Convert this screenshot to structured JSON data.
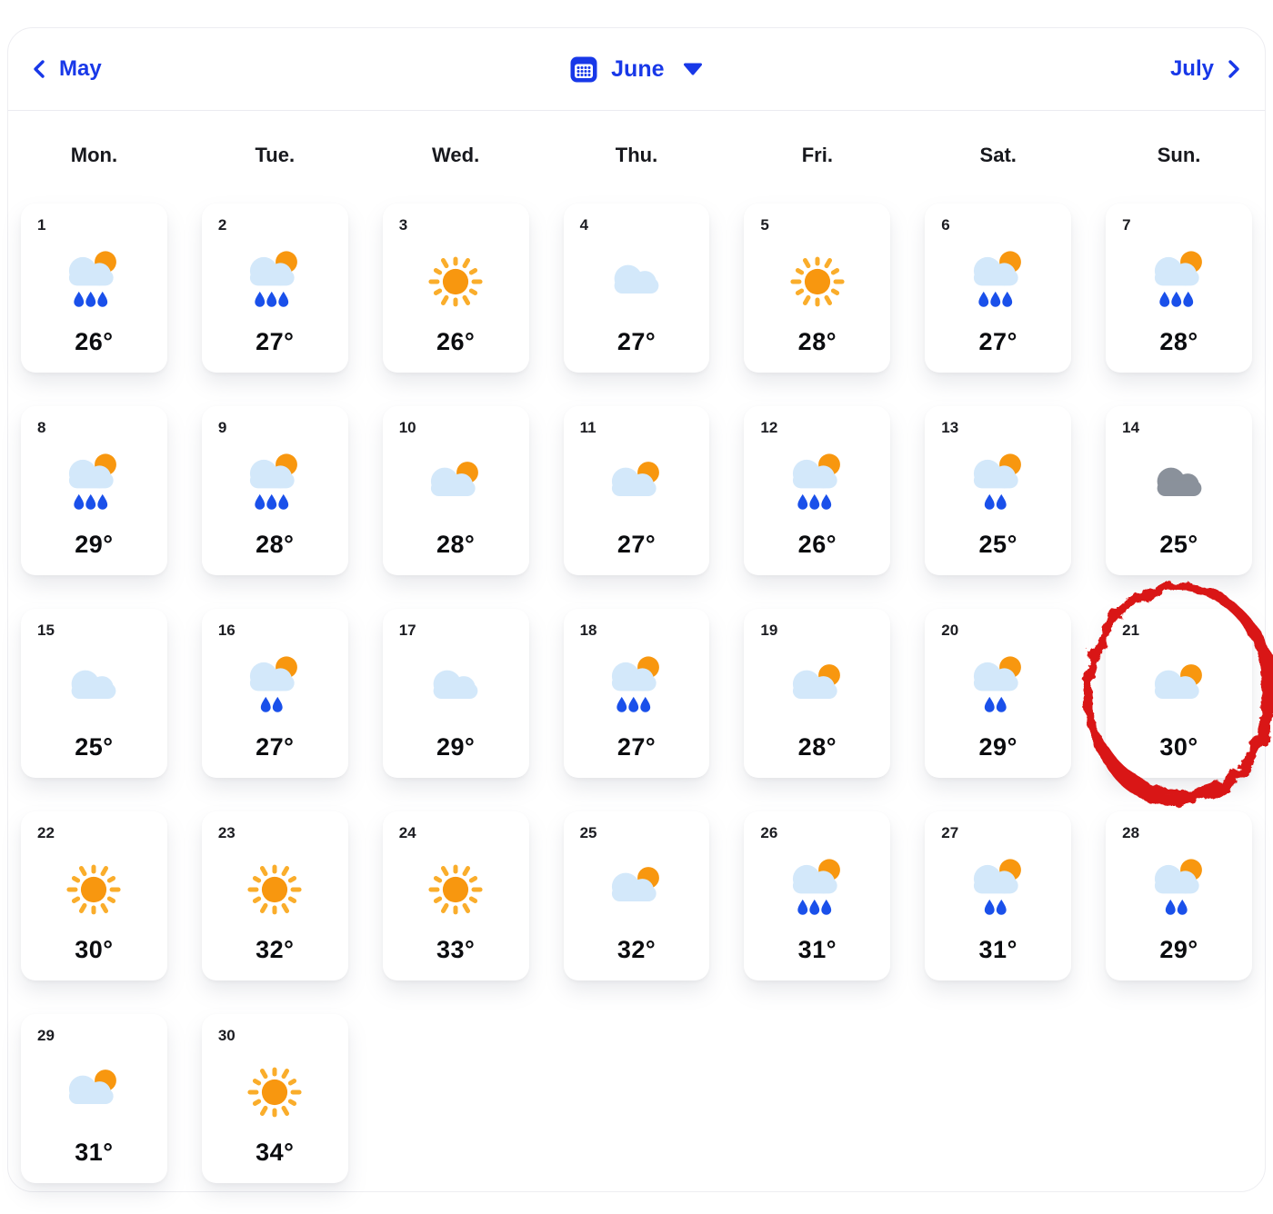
{
  "header": {
    "prev_label": "May",
    "month_label": "June",
    "next_label": "July"
  },
  "weekdays": [
    "Mon.",
    "Tue.",
    "Wed.",
    "Thu.",
    "Fri.",
    "Sat.",
    "Sun."
  ],
  "colors": {
    "accent_blue": "#1838E8",
    "sun_core": "#F8970F",
    "sun_rays": "#FAAD2B",
    "rain_blue": "#1A50EA",
    "cloud_light": "#D3E8FA",
    "cloud_gray": "#8A919B",
    "annotation_red": "#D91414"
  },
  "calendar": {
    "month": "June",
    "days": [
      {
        "day": "1",
        "icon": "cloud-sun-rain",
        "drops": 3,
        "temp": "26°"
      },
      {
        "day": "2",
        "icon": "cloud-sun-rain",
        "drops": 3,
        "temp": "27°"
      },
      {
        "day": "3",
        "icon": "sun",
        "drops": 0,
        "temp": "26°"
      },
      {
        "day": "4",
        "icon": "cloud",
        "drops": 0,
        "temp": "27°"
      },
      {
        "day": "5",
        "icon": "sun",
        "drops": 0,
        "temp": "28°"
      },
      {
        "day": "6",
        "icon": "cloud-sun-rain",
        "drops": 3,
        "temp": "27°"
      },
      {
        "day": "7",
        "icon": "cloud-sun-rain",
        "drops": 3,
        "temp": "28°"
      },
      {
        "day": "8",
        "icon": "cloud-sun-rain",
        "drops": 3,
        "temp": "29°"
      },
      {
        "day": "9",
        "icon": "cloud-sun-rain",
        "drops": 3,
        "temp": "28°"
      },
      {
        "day": "10",
        "icon": "cloud-sun",
        "drops": 0,
        "temp": "28°"
      },
      {
        "day": "11",
        "icon": "cloud-sun",
        "drops": 0,
        "temp": "27°"
      },
      {
        "day": "12",
        "icon": "cloud-sun-rain",
        "drops": 3,
        "temp": "26°"
      },
      {
        "day": "13",
        "icon": "cloud-sun-rain",
        "drops": 2,
        "temp": "25°"
      },
      {
        "day": "14",
        "icon": "cloud-dark",
        "drops": 0,
        "temp": "25°"
      },
      {
        "day": "15",
        "icon": "cloud",
        "drops": 0,
        "temp": "25°"
      },
      {
        "day": "16",
        "icon": "cloud-sun-rain",
        "drops": 2,
        "temp": "27°"
      },
      {
        "day": "17",
        "icon": "cloud",
        "drops": 0,
        "temp": "29°"
      },
      {
        "day": "18",
        "icon": "cloud-sun-rain",
        "drops": 3,
        "temp": "27°"
      },
      {
        "day": "19",
        "icon": "cloud-sun",
        "drops": 0,
        "temp": "28°"
      },
      {
        "day": "20",
        "icon": "cloud-sun-rain",
        "drops": 2,
        "temp": "29°"
      },
      {
        "day": "21",
        "icon": "cloud-sun",
        "drops": 0,
        "temp": "30°"
      },
      {
        "day": "22",
        "icon": "sun",
        "drops": 0,
        "temp": "30°"
      },
      {
        "day": "23",
        "icon": "sun",
        "drops": 0,
        "temp": "32°"
      },
      {
        "day": "24",
        "icon": "sun",
        "drops": 0,
        "temp": "33°"
      },
      {
        "day": "25",
        "icon": "cloud-sun",
        "drops": 0,
        "temp": "32°"
      },
      {
        "day": "26",
        "icon": "cloud-sun-rain",
        "drops": 3,
        "temp": "31°"
      },
      {
        "day": "27",
        "icon": "cloud-sun-rain",
        "drops": 2,
        "temp": "31°"
      },
      {
        "day": "28",
        "icon": "cloud-sun-rain",
        "drops": 2,
        "temp": "29°"
      },
      {
        "day": "29",
        "icon": "cloud-sun",
        "drops": 0,
        "temp": "31°"
      },
      {
        "day": "30",
        "icon": "sun",
        "drops": 0,
        "temp": "34°"
      }
    ]
  },
  "annotation": {
    "type": "hand-drawn-circle",
    "circled_day": "21"
  }
}
